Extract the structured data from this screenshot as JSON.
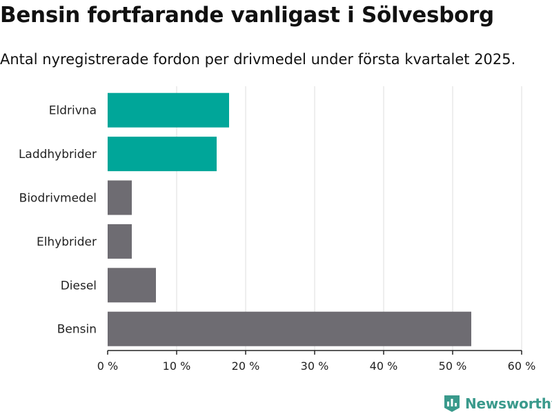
{
  "title": "Bensin fortfarande vanligast i Sölvesborg",
  "subtitle": "Antal nyregistrerade fordon per drivmedel under första kvartalet 2025.",
  "logo": {
    "text": "Newsworthy",
    "icon": "bar-chart-pin-icon"
  },
  "colors": {
    "highlight": "#00a699",
    "default": "#6e6c72",
    "grid": "#dddddd",
    "axis": "#222222",
    "brand": "#3a9a8c"
  },
  "chart_data": {
    "type": "bar",
    "orientation": "horizontal",
    "categories": [
      "Eldrivna",
      "Laddhybrider",
      "Biodrivmedel",
      "Elhybrider",
      "Diesel",
      "Bensin"
    ],
    "values": [
      17.6,
      15.8,
      3.5,
      3.5,
      7.0,
      52.7
    ],
    "highlighted": [
      true,
      true,
      false,
      false,
      false,
      false
    ],
    "xlim": [
      0,
      60
    ],
    "xticks": [
      0,
      10,
      20,
      30,
      40,
      50,
      60
    ],
    "xtick_labels": [
      "0 %",
      "10 %",
      "20 %",
      "30 %",
      "40 %",
      "50 %",
      "60 %"
    ],
    "grid": true
  }
}
